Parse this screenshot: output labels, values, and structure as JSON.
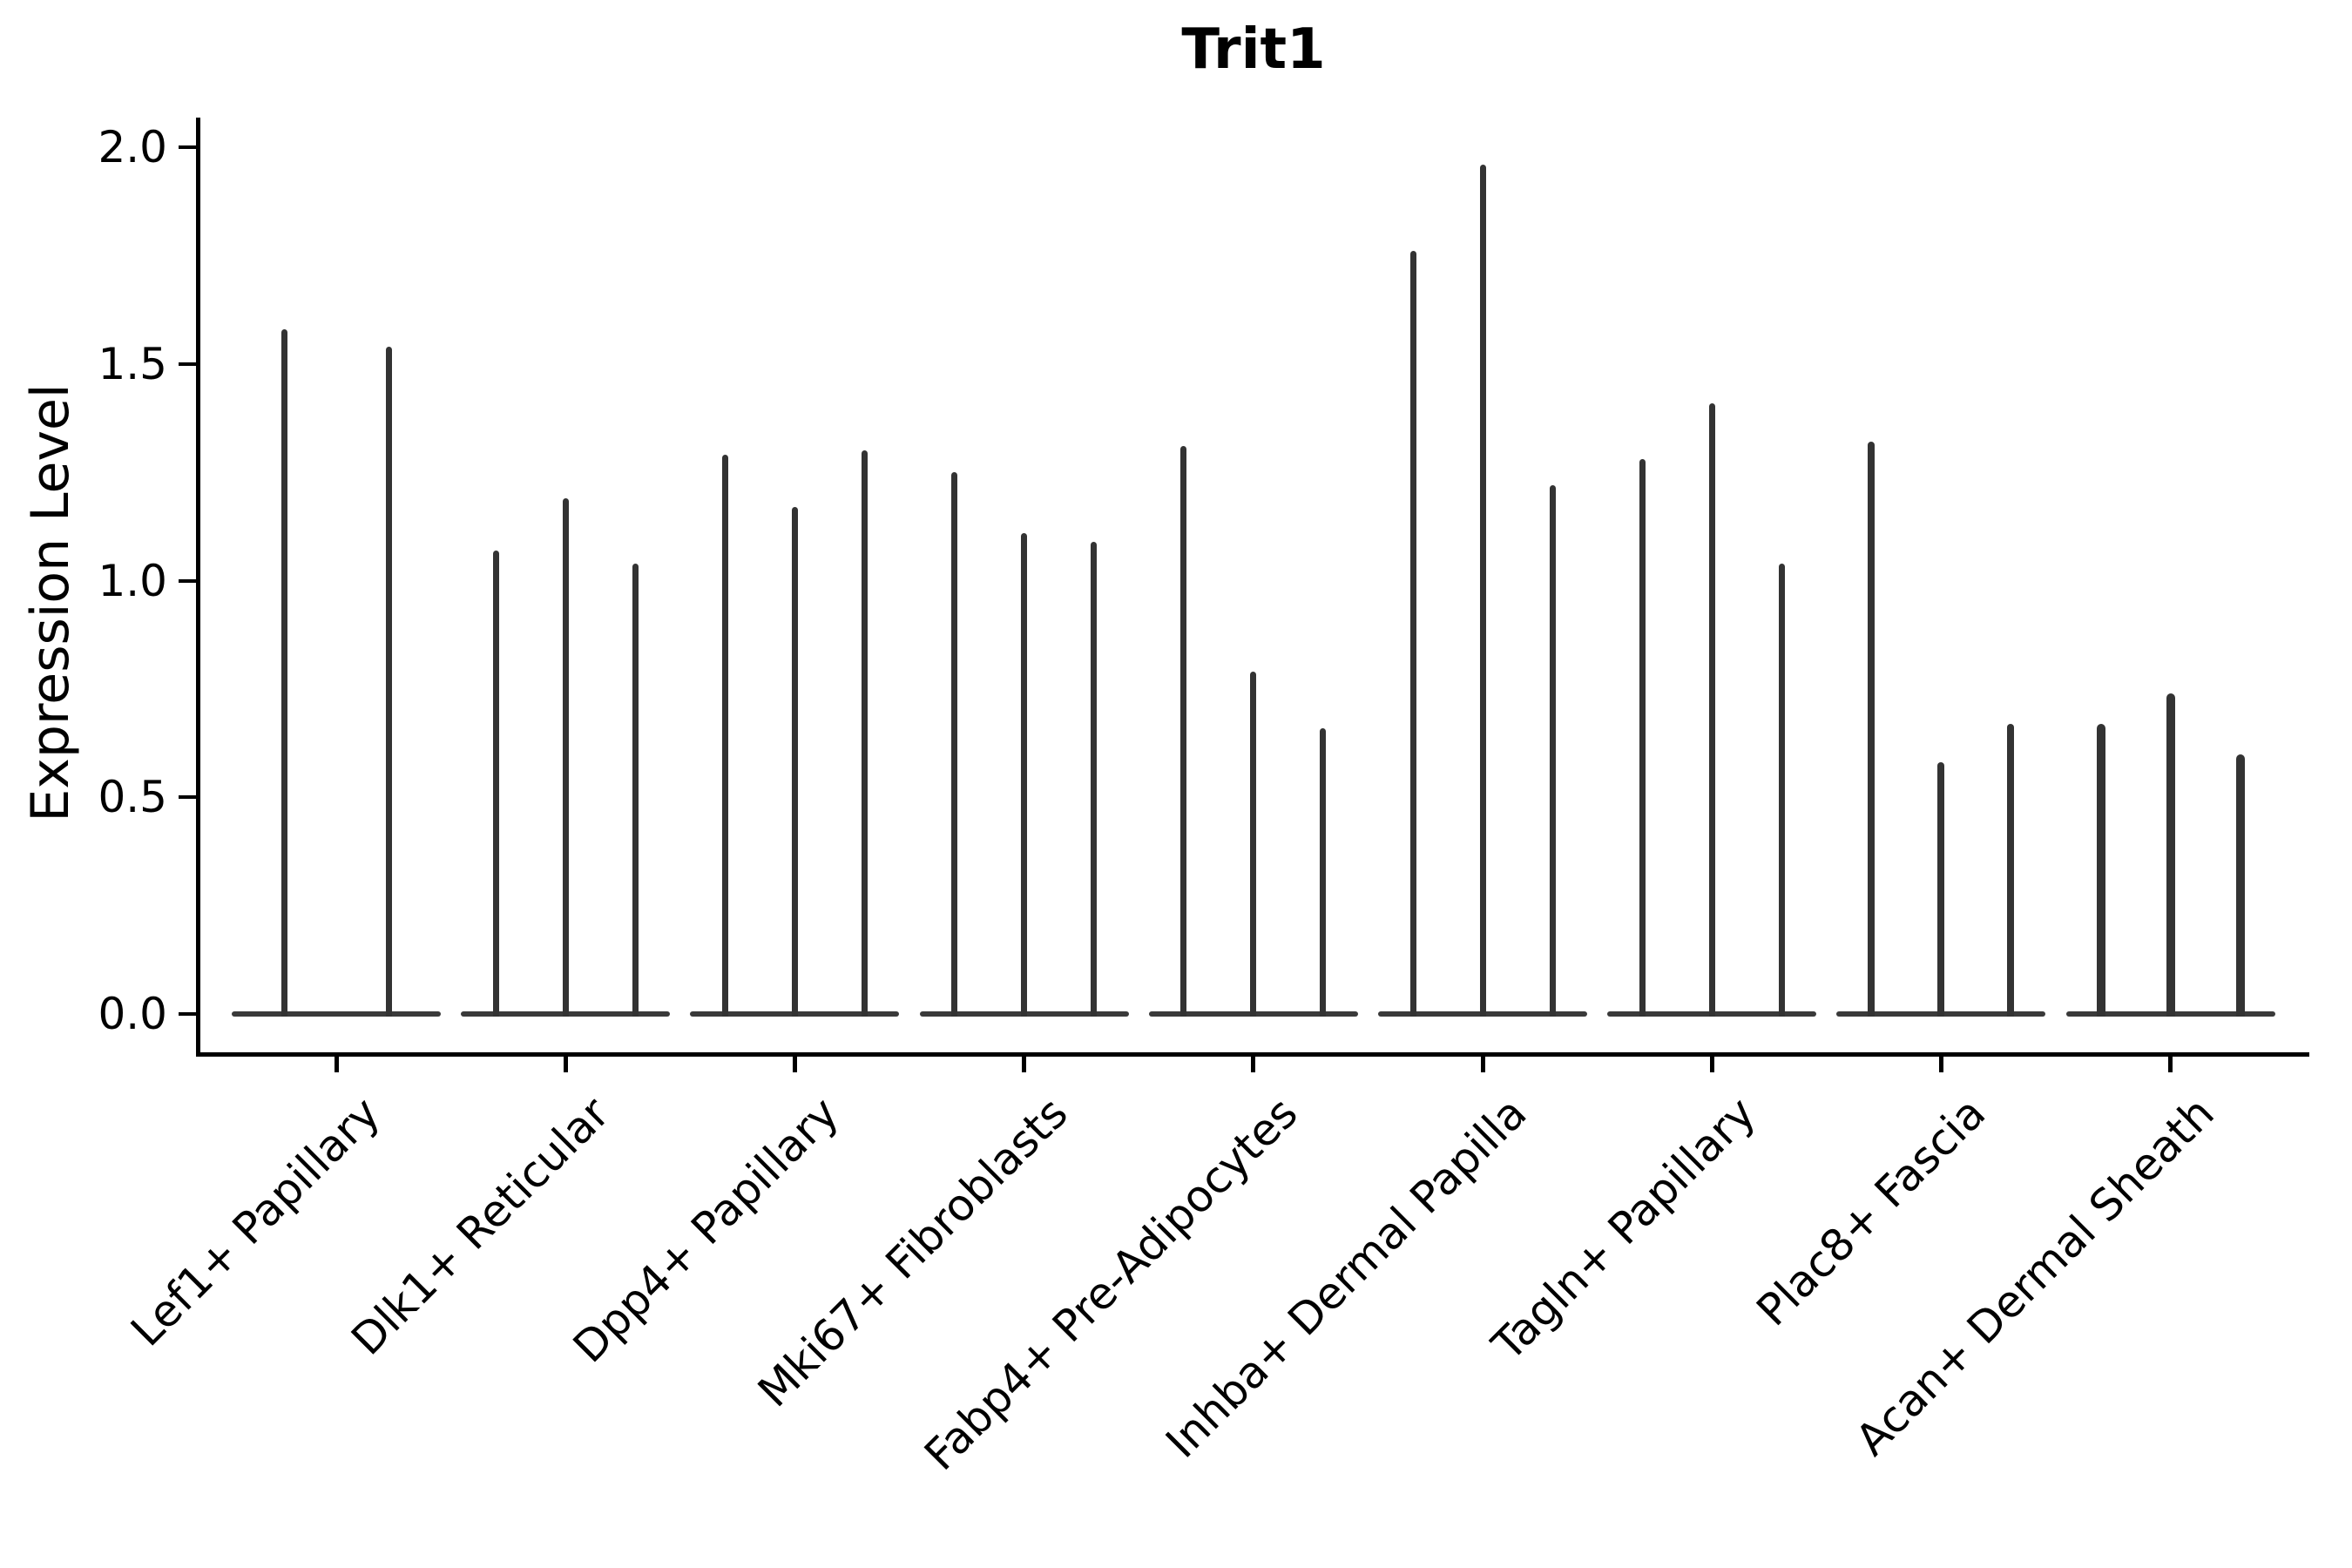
{
  "chart_data": {
    "type": "violin",
    "title": "Trit1",
    "xlabel": "",
    "ylabel": "Expression Level",
    "ylim": [
      0.0,
      2.0
    ],
    "yticks": [
      0.0,
      0.5,
      1.0,
      1.5,
      2.0
    ],
    "ytick_labels": [
      "0.0",
      "0.5",
      "1.0",
      "1.5",
      "2.0"
    ],
    "legend": "none",
    "grid": false,
    "categories": [
      "Lef1+ Papillary",
      "Dlk1+ Reticular",
      "Dpp4+ Papillary",
      "Mki67+ Fibroblasts",
      "Fabp4+ Pre-Adipocytes",
      "Inhba+ Dermal Papilla",
      "Tagln+ Papillary",
      "Plac8+ Fascia",
      "Acan+ Dermal Sheath"
    ],
    "description": "Violin plot; expression is mostly zero so each violin collapses to a flat base at 0 with a thin spike up to its maximum expression value. Each category contains 2-3 violins.",
    "groups": [
      {
        "category": "Lef1+ Papillary",
        "violin_max": [
          1.58,
          1.54
        ]
      },
      {
        "category": "Dlk1+ Reticular",
        "violin_max": [
          1.07,
          1.19,
          1.04
        ]
      },
      {
        "category": "Dpp4+ Papillary",
        "violin_max": [
          1.29,
          1.17,
          1.3
        ]
      },
      {
        "category": "Mki67+ Fibroblasts",
        "violin_max": [
          1.25,
          1.11,
          1.09
        ]
      },
      {
        "category": "Fabp4+ Pre-Adipocytes",
        "violin_max": [
          1.31,
          0.79,
          0.66
        ]
      },
      {
        "category": "Inhba+ Dermal Papilla",
        "violin_max": [
          1.76,
          1.96,
          1.22
        ]
      },
      {
        "category": "Tagln+ Papillary",
        "violin_max": [
          1.28,
          1.41,
          1.04
        ]
      },
      {
        "category": "Plac8+ Fascia",
        "violin_max": [
          1.32,
          0.58,
          0.67
        ]
      },
      {
        "category": "Acan+ Dermal Sheath",
        "violin_max": [
          0.67,
          0.74,
          0.6
        ]
      }
    ],
    "colors": {
      "background": "#ffffff",
      "axis": "#000000",
      "text": "#000000",
      "violin_stroke": "#333333"
    }
  }
}
